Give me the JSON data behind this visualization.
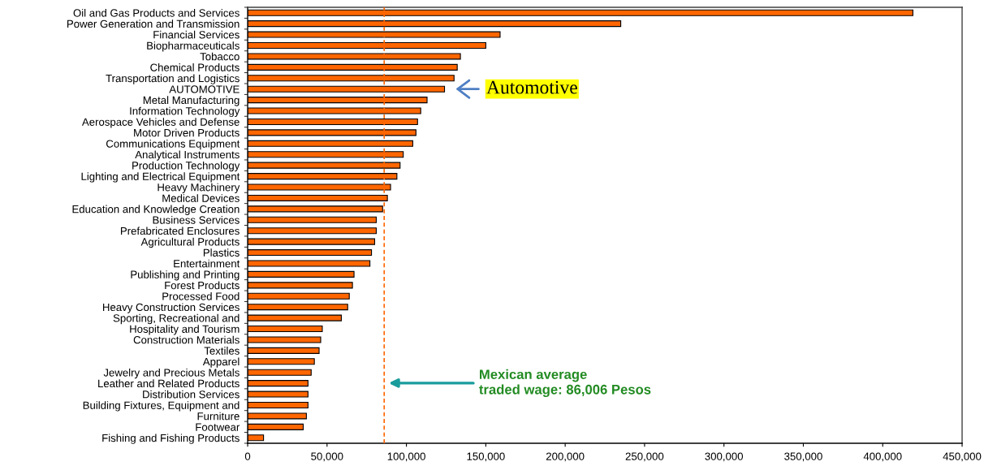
{
  "chart_data": {
    "type": "bar",
    "orientation": "horizontal",
    "categories": [
      "Oil and Gas Products and Services",
      "Power Generation and Transmission",
      "Financial Services",
      "Biopharmaceuticals",
      "Tobacco",
      "Chemical Products",
      "Transportation and Logistics",
      "AUTOMOTIVE",
      "Metal Manufacturing",
      "Information Technology",
      "Aerospace Vehicles and Defense",
      "Motor Driven Products",
      "Communications Equipment",
      "Analytical Instruments",
      "Production Technology",
      "Lighting and Electrical Equipment",
      "Heavy Machinery",
      "Medical Devices",
      "Education and Knowledge Creation",
      "Business Services",
      "Prefabricated Enclosures",
      "Agricultural Products",
      "Plastics",
      "Entertainment",
      "Publishing and Printing",
      "Forest Products",
      "Processed Food",
      "Heavy Construction Services",
      "Sporting, Recreational and",
      "Hospitality and Tourism",
      "Construction Materials",
      "Textiles",
      "Apparel",
      "Jewelry and Precious Metals",
      "Leather and Related Products",
      "Distribution Services",
      "Building Fixtures, Equipment and",
      "Furniture",
      "Footwear",
      "Fishing and Fishing Products"
    ],
    "values": [
      419000,
      235000,
      159000,
      150000,
      134000,
      132000,
      130000,
      124000,
      113000,
      109000,
      107000,
      106000,
      104000,
      98000,
      96000,
      94000,
      90000,
      88000,
      85000,
      81000,
      81000,
      80000,
      78000,
      77000,
      67000,
      66000,
      64000,
      63000,
      59000,
      47000,
      46000,
      45000,
      42000,
      40000,
      38000,
      38000,
      38000,
      37000,
      35000,
      10000
    ],
    "color": "#ff6600",
    "xlim": [
      0,
      450000
    ],
    "xticks": [
      0,
      {
        "value": 50000,
        "label": "50,000"
      },
      {
        "value": 100000,
        "label": "100,000"
      },
      {
        "value": 150000,
        "label": "150,000"
      },
      {
        "value": 200000,
        "label": "200,000"
      },
      {
        "value": 250000,
        "label": "250,000"
      },
      {
        "value": 300000,
        "label": "300,000"
      },
      {
        "value": 350000,
        "label": "350,000"
      },
      {
        "value": 400000,
        "label": "400,000"
      },
      {
        "value": 450000,
        "label": "450,000"
      }
    ],
    "ref_lines": [
      {
        "axis": "x",
        "value": 86006,
        "color": "#ff6600",
        "line_style": "dashed"
      }
    ],
    "annotations": [
      {
        "text": "Automotive",
        "x": 124000,
        "y": "AUTOMOTIVE"
      },
      "Mexican average\ntraded wage: 86,006 Pesos"
    ]
  }
}
